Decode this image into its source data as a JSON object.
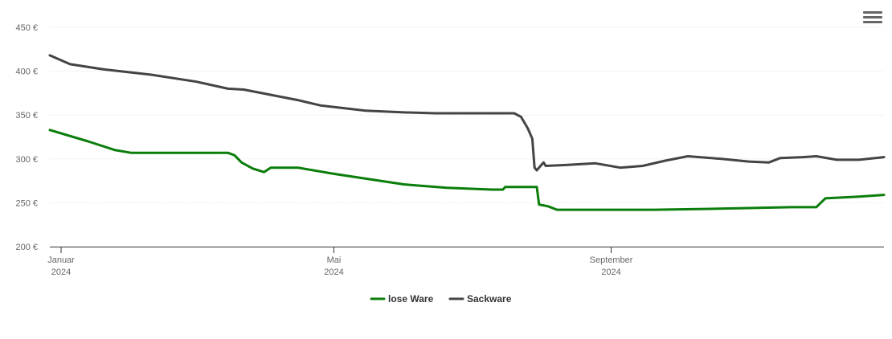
{
  "chart_data": {
    "type": "line",
    "title": "",
    "xlabel": "",
    "ylabel": "",
    "ylim": [
      200,
      450
    ],
    "y_ticks": [
      200,
      250,
      300,
      350,
      400,
      450
    ],
    "y_tick_suffix": " €",
    "grid": true,
    "legend_position": "bottom-center",
    "x_ticks": [
      {
        "date": "2024-01-01",
        "label": "Januar",
        "sublabel": "2024"
      },
      {
        "date": "2024-05-01",
        "label": "Mai",
        "sublabel": "2024"
      },
      {
        "date": "2024-09-01",
        "label": "September",
        "sublabel": "2024"
      }
    ],
    "x_start": "2023-12-27",
    "x_end": "2024-12-31",
    "series": [
      {
        "name": "lose Ware",
        "color": "#0a7d0a",
        "points": [
          [
            "2023-12-27",
            333
          ],
          [
            "2024-01-13",
            320
          ],
          [
            "2024-01-25",
            310
          ],
          [
            "2024-02-01",
            307
          ],
          [
            "2024-02-15",
            307
          ],
          [
            "2024-03-01",
            307
          ],
          [
            "2024-03-15",
            307
          ],
          [
            "2024-03-18",
            304
          ],
          [
            "2024-03-21",
            296
          ],
          [
            "2024-03-26",
            289
          ],
          [
            "2024-03-31",
            285
          ],
          [
            "2024-04-03",
            290
          ],
          [
            "2024-04-15",
            290
          ],
          [
            "2024-05-01",
            283
          ],
          [
            "2024-06-01",
            271
          ],
          [
            "2024-06-20",
            267
          ],
          [
            "2024-07-10",
            265
          ],
          [
            "2024-07-15",
            265
          ],
          [
            "2024-07-16",
            268
          ],
          [
            "2024-07-30",
            268
          ],
          [
            "2024-07-31",
            248
          ],
          [
            "2024-08-04",
            246
          ],
          [
            "2024-08-08",
            242
          ],
          [
            "2024-08-25",
            242
          ],
          [
            "2024-09-20",
            242
          ],
          [
            "2024-10-15",
            243
          ],
          [
            "2024-11-20",
            245
          ],
          [
            "2024-12-01",
            245
          ],
          [
            "2024-12-03",
            250
          ],
          [
            "2024-12-05",
            255
          ],
          [
            "2024-12-20",
            257
          ],
          [
            "2024-12-31",
            259
          ]
        ]
      },
      {
        "name": "Sackware",
        "color": "#444444",
        "points": [
          [
            "2023-12-27",
            418
          ],
          [
            "2024-01-05",
            408
          ],
          [
            "2024-01-20",
            402
          ],
          [
            "2024-02-10",
            396
          ],
          [
            "2024-03-01",
            388
          ],
          [
            "2024-03-15",
            380
          ],
          [
            "2024-03-22",
            379
          ],
          [
            "2024-04-15",
            367
          ],
          [
            "2024-04-25",
            361
          ],
          [
            "2024-05-15",
            355
          ],
          [
            "2024-06-01",
            353
          ],
          [
            "2024-06-15",
            352
          ],
          [
            "2024-07-01",
            352
          ],
          [
            "2024-07-20",
            352
          ],
          [
            "2024-07-23",
            348
          ],
          [
            "2024-07-26",
            335
          ],
          [
            "2024-07-28",
            323
          ],
          [
            "2024-07-29",
            290
          ],
          [
            "2024-07-30",
            287
          ],
          [
            "2024-08-01",
            293
          ],
          [
            "2024-08-02",
            296
          ],
          [
            "2024-08-03",
            292
          ],
          [
            "2024-08-12",
            293
          ],
          [
            "2024-08-25",
            295
          ],
          [
            "2024-09-05",
            290
          ],
          [
            "2024-09-15",
            292
          ],
          [
            "2024-09-25",
            298
          ],
          [
            "2024-10-05",
            303
          ],
          [
            "2024-10-20",
            300
          ],
          [
            "2024-11-01",
            297
          ],
          [
            "2024-11-10",
            296
          ],
          [
            "2024-11-15",
            301
          ],
          [
            "2024-11-25",
            302
          ],
          [
            "2024-12-01",
            303
          ],
          [
            "2024-12-10",
            299
          ],
          [
            "2024-12-20",
            299
          ],
          [
            "2024-12-31",
            302
          ]
        ]
      }
    ]
  }
}
